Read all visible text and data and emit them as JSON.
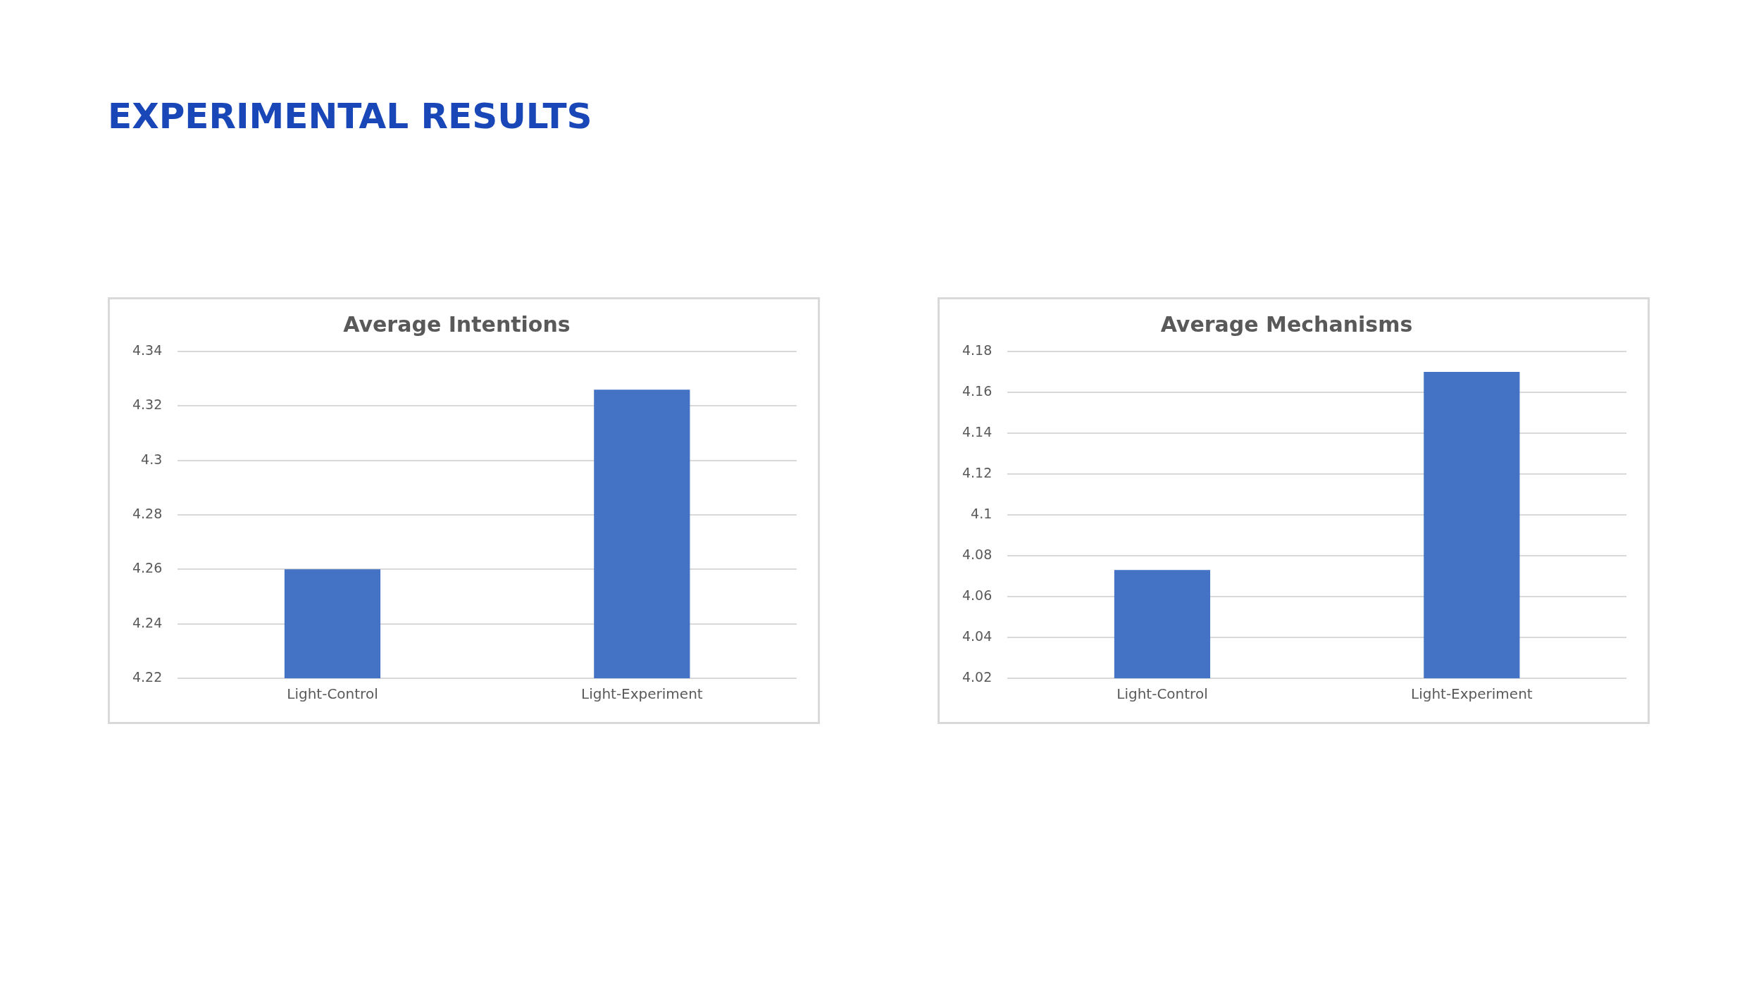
{
  "chart_data": [
    {
      "type": "bar",
      "title": "Average Intentions",
      "annotations": [
        "EXPERIMENTAL RESULTS"
      ],
      "categories": [
        "Light-Control",
        "Light-Experiment"
      ],
      "values": [
        4.26,
        4.326
      ],
      "color": "#4472c4",
      "ylim": [
        4.22,
        4.34
      ],
      "yticks": [
        4.22,
        4.24,
        4.26,
        4.28,
        4.3,
        4.32,
        4.34
      ],
      "grid": "y",
      "legend": false
    },
    {
      "type": "bar",
      "title": "Average Mechanisms",
      "categories": [
        "Light-Control",
        "Light-Experiment"
      ],
      "values": [
        4.073,
        4.17
      ],
      "color": "#4472c4",
      "ylim": [
        4.02,
        4.18
      ],
      "yticks": [
        4.02,
        4.04,
        4.06,
        4.08,
        4.1,
        4.12,
        4.14,
        4.16,
        4.18
      ],
      "grid": "y",
      "legend": false
    }
  ]
}
